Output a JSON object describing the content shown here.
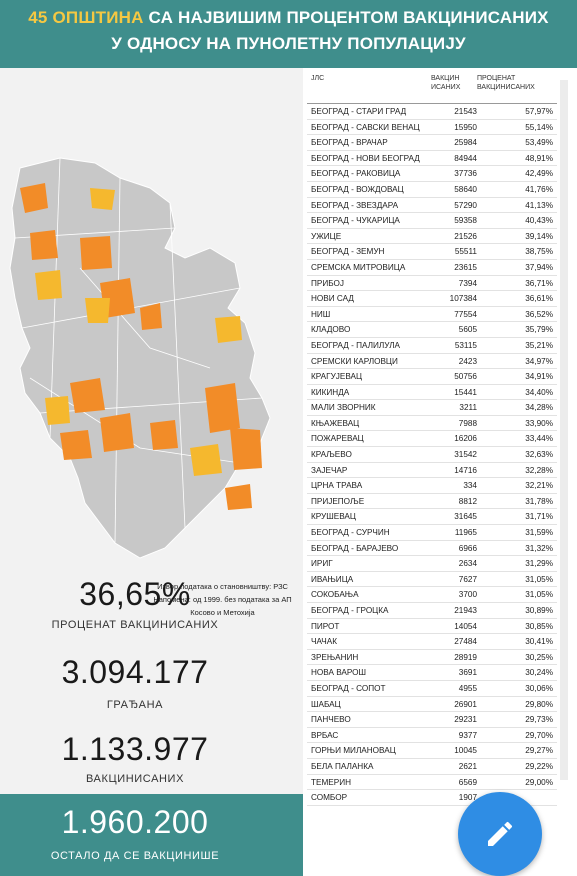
{
  "header": {
    "line1_highlight": "45 ОПШТИНА",
    "line1_rest": " СА НАЈВИШИМ ПРОЦЕНТОМ ВАКЦИНИСАНИХ",
    "line2": "У ОДНОСУ НА ПУНОЛЕТНУ ПОПУЛАЦИЈУ"
  },
  "map": {
    "source_line1": "Извор података о становништву: РЗС",
    "source_line2": "Напомена: од 1999. без података за АП",
    "source_line3": "Косово и Метохија",
    "colors": {
      "base": "#c8c8c8",
      "orange": "#f28c28",
      "yellow": "#f5b82e"
    }
  },
  "stats": {
    "percent_value": "36,65%",
    "percent_label": "ПРОЦЕНАТ ВАКЦИНИСАНИХ",
    "citizens_value": "3.094.177",
    "citizens_label": "ГРАЂАНА",
    "vaccinated_value": "1.133.977",
    "vaccinated_label": "ВАКЦИНИСАНИХ",
    "remaining_value": "1.960.200",
    "remaining_label": "ОСТАЛО ДА СЕ ВАКЦИНИШЕ"
  },
  "table": {
    "headers": {
      "col1": "ЈЛС",
      "col2a": "ВАКЦИН",
      "col2b": "ИСАНИХ",
      "col3a": "ПРОЦЕНАТ",
      "col3b": "ВАКЦИНИСАНИХ"
    },
    "rows": [
      [
        "БЕОГРАД - СТАРИ ГРАД",
        "21543",
        "57,97%"
      ],
      [
        "БЕОГРАД - САВСКИ ВЕНАЦ",
        "15950",
        "55,14%"
      ],
      [
        "БЕОГРАД - ВРАЧАР",
        "25984",
        "53,49%"
      ],
      [
        "БЕОГРАД - НОВИ БЕОГРАД",
        "84944",
        "48,91%"
      ],
      [
        "БЕОГРАД - РАКОВИЦА",
        "37736",
        "42,49%"
      ],
      [
        "БЕОГРАД - ВОЖДОВАЦ",
        "58640",
        "41,76%"
      ],
      [
        "БЕОГРАД - ЗВЕЗДАРА",
        "57290",
        "41,13%"
      ],
      [
        "БЕОГРАД - ЧУКАРИЦА",
        "59358",
        "40,43%"
      ],
      [
        "УЖИЦЕ",
        "21526",
        "39,14%"
      ],
      [
        "БЕОГРАД - ЗЕМУН",
        "55511",
        "38,75%"
      ],
      [
        "СРЕМСКА МИТРОВИЦА",
        "23615",
        "37,94%"
      ],
      [
        "ПРИБОЈ",
        "7394",
        "36,71%"
      ],
      [
        "НОВИ САД",
        "107384",
        "36,61%"
      ],
      [
        "НИШ",
        "77554",
        "36,52%"
      ],
      [
        "КЛАДОВО",
        "5605",
        "35,79%"
      ],
      [
        "БЕОГРАД - ПАЛИЛУЛА",
        "53115",
        "35,21%"
      ],
      [
        "СРЕМСКИ КАРЛОВЦИ",
        "2423",
        "34,97%"
      ],
      [
        "КРАГУЈЕВАЦ",
        "50756",
        "34,91%"
      ],
      [
        "КИКИНДА",
        "15441",
        "34,40%"
      ],
      [
        "МАЛИ ЗВОРНИК",
        "3211",
        "34,28%"
      ],
      [
        "КЊАЖЕВАЦ",
        "7988",
        "33,90%"
      ],
      [
        "ПОЖАРЕВАЦ",
        "16206",
        "33,44%"
      ],
      [
        "КРАЉЕВО",
        "31542",
        "32,63%"
      ],
      [
        "ЗАЈЕЧАР",
        "14716",
        "32,28%"
      ],
      [
        "ЦРНА ТРАВА",
        "334",
        "32,21%"
      ],
      [
        "ПРИЈЕПОЉЕ",
        "8812",
        "31,78%"
      ],
      [
        "КРУШЕВАЦ",
        "31645",
        "31,71%"
      ],
      [
        "БЕОГРАД - СУРЧИН",
        "11965",
        "31,59%"
      ],
      [
        "БЕОГРАД - БАРАЈЕВО",
        "6966",
        "31,32%"
      ],
      [
        "ИРИГ",
        "2634",
        "31,29%"
      ],
      [
        "ИВАЊИЦА",
        "7627",
        "31,05%"
      ],
      [
        "СОКОБАЊА",
        "3700",
        "31,05%"
      ],
      [
        "БЕОГРАД - ГРОЦКА",
        "21943",
        "30,89%"
      ],
      [
        "ПИРОТ",
        "14054",
        "30,85%"
      ],
      [
        "ЧАЧАК",
        "27484",
        "30,41%"
      ],
      [
        "ЗРЕЊАНИН",
        "28919",
        "30,25%"
      ],
      [
        "НОВА ВАРОШ",
        "3691",
        "30,24%"
      ],
      [
        "БЕОГРАД - СОПОТ",
        "4955",
        "30,06%"
      ],
      [
        "ШАБАЦ",
        "26901",
        "29,80%"
      ],
      [
        "ПАНЧЕВО",
        "29231",
        "29,73%"
      ],
      [
        "ВРБАС",
        "9377",
        "29,70%"
      ],
      [
        "ГОРЊИ МИЛАНОВАЦ",
        "10045",
        "29,27%"
      ],
      [
        "БЕЛА ПАЛАНКА",
        "2621",
        "29,22%"
      ],
      [
        "ТЕМЕРИН",
        "6569",
        "29,00%"
      ],
      [
        "СОМБОР",
        "1907",
        ""
      ]
    ]
  },
  "fab": {
    "icon": "pencil-icon",
    "color": "#2f8de4"
  }
}
